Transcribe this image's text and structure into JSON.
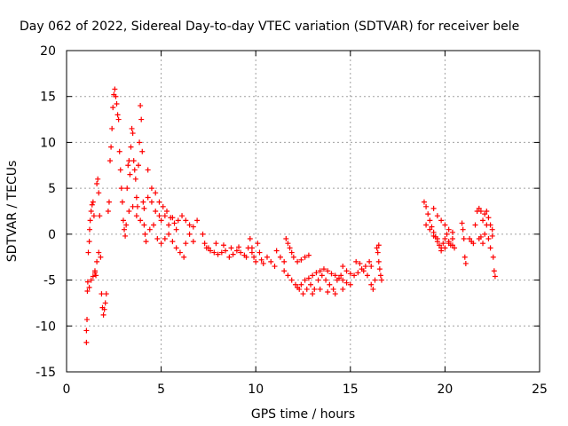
{
  "chart_data": {
    "type": "scatter",
    "title": "Day 062 of 2022, Sidereal Day-to-day VTEC variation (SDTVAR) for receiver bele",
    "xlabel": "GPS time / hours",
    "ylabel": "SDTVAR / TECUs",
    "xlim": [
      0,
      25
    ],
    "ylim": [
      -15,
      20
    ],
    "xticks": [
      0,
      5,
      10,
      15,
      20,
      25
    ],
    "yticks": [
      -15,
      -10,
      -5,
      0,
      5,
      10,
      15,
      20
    ],
    "xtick_labels": [
      "0",
      "5",
      "10",
      "15",
      "20",
      "25"
    ],
    "ytick_labels": [
      "-15",
      "-10",
      "-5",
      "0",
      "5",
      "10",
      "15",
      "20"
    ],
    "grid": true,
    "marker": "plus",
    "color": "#ff0000",
    "series": [
      {
        "name": "SDTVAR",
        "points": [
          [
            1.05,
            -11.8
          ],
          [
            1.05,
            -10.5
          ],
          [
            1.08,
            -9.3
          ],
          [
            1.1,
            -6.2
          ],
          [
            1.12,
            -5.2
          ],
          [
            1.15,
            -2.0
          ],
          [
            1.2,
            -0.8
          ],
          [
            1.22,
            0.5
          ],
          [
            1.25,
            1.5
          ],
          [
            1.3,
            2.5
          ],
          [
            1.35,
            3.2
          ],
          [
            1.4,
            3.5
          ],
          [
            1.45,
            2.0
          ],
          [
            1.5,
            -4.0
          ],
          [
            1.55,
            -4.5
          ],
          [
            1.6,
            5.5
          ],
          [
            1.65,
            6.0
          ],
          [
            1.7,
            4.5
          ],
          [
            1.75,
            2.0
          ],
          [
            1.8,
            -2.5
          ],
          [
            1.85,
            -6.5
          ],
          [
            1.9,
            -8.0
          ],
          [
            1.95,
            -8.8
          ],
          [
            2.0,
            -8.2
          ],
          [
            2.05,
            -7.5
          ],
          [
            2.1,
            -6.5
          ],
          [
            1.2,
            -5.8
          ],
          [
            1.3,
            -5.0
          ],
          [
            1.4,
            -4.6
          ],
          [
            1.5,
            -4.2
          ],
          [
            1.6,
            -3.0
          ],
          [
            1.7,
            -2.0
          ],
          [
            2.2,
            2.5
          ],
          [
            2.25,
            3.5
          ],
          [
            2.3,
            8.0
          ],
          [
            2.35,
            9.5
          ],
          [
            2.4,
            11.5
          ],
          [
            2.45,
            13.8
          ],
          [
            2.5,
            15.2
          ],
          [
            2.55,
            15.8
          ],
          [
            2.6,
            15.0
          ],
          [
            2.65,
            14.2
          ],
          [
            2.7,
            13.0
          ],
          [
            2.75,
            12.5
          ],
          [
            2.8,
            9.0
          ],
          [
            2.85,
            7.0
          ],
          [
            2.9,
            5.0
          ],
          [
            2.95,
            3.5
          ],
          [
            3.0,
            1.5
          ],
          [
            3.05,
            0.5
          ],
          [
            3.1,
            -0.2
          ],
          [
            3.15,
            1.0
          ],
          [
            3.2,
            5.0
          ],
          [
            3.25,
            7.5
          ],
          [
            3.3,
            8.0
          ],
          [
            3.35,
            6.5
          ],
          [
            3.4,
            9.5
          ],
          [
            3.45,
            11.5
          ],
          [
            3.5,
            11.0
          ],
          [
            3.55,
            8.0
          ],
          [
            3.6,
            7.0
          ],
          [
            3.65,
            6.0
          ],
          [
            3.7,
            4.0
          ],
          [
            3.75,
            3.0
          ],
          [
            3.8,
            7.5
          ],
          [
            3.85,
            10.0
          ],
          [
            3.9,
            14.0
          ],
          [
            3.95,
            12.5
          ],
          [
            4.0,
            9.0
          ],
          [
            4.05,
            3.5
          ],
          [
            4.1,
            1.0
          ],
          [
            4.15,
            0.0
          ],
          [
            4.2,
            -0.8
          ],
          [
            3.3,
            2.5
          ],
          [
            3.5,
            3.0
          ],
          [
            3.7,
            2.0
          ],
          [
            3.9,
            1.5
          ],
          [
            4.1,
            2.8
          ],
          [
            4.3,
            4.0
          ],
          [
            4.5,
            3.5
          ],
          [
            4.7,
            2.5
          ],
          [
            4.9,
            2.0
          ],
          [
            4.3,
            7.0
          ],
          [
            4.5,
            5.0
          ],
          [
            4.7,
            4.5
          ],
          [
            4.9,
            3.5
          ],
          [
            5.1,
            3.0
          ],
          [
            5.3,
            2.5
          ],
          [
            5.5,
            1.8
          ],
          [
            5.7,
            1.2
          ],
          [
            5.9,
            1.5
          ],
          [
            6.1,
            2.0
          ],
          [
            6.3,
            1.5
          ],
          [
            6.5,
            1.0
          ],
          [
            6.7,
            0.8
          ],
          [
            6.9,
            1.5
          ],
          [
            4.4,
            0.5
          ],
          [
            4.6,
            1.0
          ],
          [
            4.8,
            -0.5
          ],
          [
            5.0,
            -1.0
          ],
          [
            5.2,
            -0.5
          ],
          [
            5.4,
            0.0
          ],
          [
            5.6,
            -0.8
          ],
          [
            5.8,
            -1.5
          ],
          [
            6.0,
            -2.0
          ],
          [
            6.2,
            -2.5
          ],
          [
            6.3,
            -1.0
          ],
          [
            6.5,
            0.0
          ],
          [
            6.7,
            -0.8
          ],
          [
            5.0,
            1.5
          ],
          [
            5.2,
            2.0
          ],
          [
            5.4,
            1.0
          ],
          [
            5.6,
            1.8
          ],
          [
            5.8,
            0.5
          ],
          [
            7.2,
            0.0
          ],
          [
            7.3,
            -1.0
          ],
          [
            7.4,
            -1.5
          ],
          [
            7.6,
            -1.8
          ],
          [
            7.8,
            -2.0
          ],
          [
            8.0,
            -2.2
          ],
          [
            8.2,
            -2.0
          ],
          [
            8.4,
            -1.8
          ],
          [
            8.6,
            -2.5
          ],
          [
            8.8,
            -2.2
          ],
          [
            9.0,
            -1.8
          ],
          [
            9.2,
            -2.0
          ],
          [
            9.4,
            -2.3
          ],
          [
            9.6,
            -1.5
          ],
          [
            9.8,
            -2.0
          ],
          [
            7.5,
            -1.5
          ],
          [
            7.9,
            -1.0
          ],
          [
            8.3,
            -1.2
          ],
          [
            8.7,
            -1.5
          ],
          [
            9.1,
            -1.4
          ],
          [
            9.5,
            -2.5
          ],
          [
            9.7,
            -0.5
          ],
          [
            9.8,
            -1.5
          ],
          [
            9.9,
            -2.5
          ],
          [
            10.0,
            -3.0
          ],
          [
            10.1,
            -1.0
          ],
          [
            10.2,
            -2.0
          ],
          [
            10.3,
            -2.8
          ],
          [
            10.4,
            -3.2
          ],
          [
            10.6,
            -2.5
          ],
          [
            10.8,
            -3.0
          ],
          [
            11.0,
            -3.5
          ],
          [
            11.1,
            -1.8
          ],
          [
            11.3,
            -2.5
          ],
          [
            11.5,
            -3.0
          ],
          [
            11.6,
            -0.5
          ],
          [
            11.7,
            -1.0
          ],
          [
            11.8,
            -1.5
          ],
          [
            11.9,
            -2.0
          ],
          [
            12.0,
            -2.5
          ],
          [
            12.2,
            -3.0
          ],
          [
            12.4,
            -2.8
          ],
          [
            12.6,
            -2.5
          ],
          [
            12.8,
            -2.3
          ],
          [
            11.5,
            -4.0
          ],
          [
            11.7,
            -4.5
          ],
          [
            11.9,
            -5.0
          ],
          [
            12.1,
            -5.5
          ],
          [
            12.3,
            -6.0
          ],
          [
            12.5,
            -6.5
          ],
          [
            12.7,
            -6.0
          ],
          [
            12.9,
            -5.5
          ],
          [
            13.1,
            -6.0
          ],
          [
            13.3,
            -5.0
          ],
          [
            13.5,
            -4.5
          ],
          [
            13.7,
            -5.0
          ],
          [
            13.9,
            -5.5
          ],
          [
            14.1,
            -6.0
          ],
          [
            14.3,
            -5.0
          ],
          [
            14.5,
            -4.5
          ],
          [
            12.2,
            -5.8
          ],
          [
            12.4,
            -5.5
          ],
          [
            12.6,
            -5.0
          ],
          [
            12.8,
            -4.8
          ],
          [
            13.0,
            -4.5
          ],
          [
            13.2,
            -4.2
          ],
          [
            13.4,
            -4.0
          ],
          [
            13.6,
            -3.8
          ],
          [
            13.8,
            -4.0
          ],
          [
            14.0,
            -4.3
          ],
          [
            14.2,
            -4.5
          ],
          [
            14.4,
            -4.8
          ],
          [
            14.6,
            -5.0
          ],
          [
            14.8,
            -5.3
          ],
          [
            15.0,
            -5.5
          ],
          [
            13.0,
            -6.5
          ],
          [
            13.4,
            -6.0
          ],
          [
            13.8,
            -6.3
          ],
          [
            14.2,
            -6.5
          ],
          [
            14.6,
            -6.0
          ],
          [
            14.6,
            -3.5
          ],
          [
            14.8,
            -4.0
          ],
          [
            15.0,
            -4.3
          ],
          [
            15.2,
            -4.5
          ],
          [
            15.4,
            -4.2
          ],
          [
            15.6,
            -3.8
          ],
          [
            15.8,
            -3.5
          ],
          [
            16.0,
            -3.0
          ],
          [
            16.1,
            -5.5
          ],
          [
            16.2,
            -6.0
          ],
          [
            16.3,
            -5.0
          ],
          [
            15.3,
            -3.0
          ],
          [
            15.5,
            -3.2
          ],
          [
            15.7,
            -4.0
          ],
          [
            15.9,
            -4.5
          ],
          [
            16.1,
            -3.5
          ],
          [
            16.4,
            -1.5
          ],
          [
            16.45,
            -2.0
          ],
          [
            16.5,
            -3.0
          ],
          [
            16.55,
            -3.8
          ],
          [
            16.6,
            -4.5
          ],
          [
            16.65,
            -5.0
          ],
          [
            16.5,
            -1.2
          ],
          [
            18.9,
            3.5
          ],
          [
            19.0,
            3.0
          ],
          [
            19.1,
            2.2
          ],
          [
            19.2,
            1.5
          ],
          [
            19.3,
            0.8
          ],
          [
            19.4,
            0.2
          ],
          [
            19.5,
            -0.3
          ],
          [
            19.6,
            -0.8
          ],
          [
            19.7,
            -1.2
          ],
          [
            19.8,
            -1.5
          ],
          [
            19.9,
            -1.0
          ],
          [
            20.0,
            -0.5
          ],
          [
            20.1,
            0.0
          ],
          [
            20.2,
            -0.8
          ],
          [
            20.3,
            -1.2
          ],
          [
            20.4,
            -0.5
          ],
          [
            19.0,
            1.0
          ],
          [
            19.2,
            0.5
          ],
          [
            19.4,
            -0.2
          ],
          [
            19.6,
            -0.5
          ],
          [
            19.8,
            -1.8
          ],
          [
            20.0,
            -1.5
          ],
          [
            20.2,
            -1.0
          ],
          [
            20.4,
            -1.2
          ],
          [
            20.5,
            -1.5
          ],
          [
            19.4,
            2.8
          ],
          [
            19.6,
            2.0
          ],
          [
            19.8,
            1.5
          ],
          [
            20.0,
            1.0
          ],
          [
            20.2,
            0.5
          ],
          [
            20.4,
            0.2
          ],
          [
            20.9,
            1.2
          ],
          [
            20.95,
            0.5
          ],
          [
            21.0,
            -0.5
          ],
          [
            21.05,
            -2.5
          ],
          [
            21.1,
            -3.2
          ],
          [
            21.3,
            -0.5
          ],
          [
            21.4,
            -0.8
          ],
          [
            21.5,
            -1.0
          ],
          [
            21.6,
            1.0
          ],
          [
            21.7,
            2.5
          ],
          [
            21.8,
            2.8
          ],
          [
            21.9,
            2.5
          ],
          [
            22.0,
            1.5
          ],
          [
            22.1,
            2.2
          ],
          [
            22.2,
            2.5
          ],
          [
            22.3,
            1.8
          ],
          [
            22.4,
            1.0
          ],
          [
            22.5,
            0.5
          ],
          [
            22.55,
            -2.5
          ],
          [
            22.6,
            -4.0
          ],
          [
            22.65,
            -4.6
          ],
          [
            21.8,
            -0.5
          ],
          [
            21.9,
            -0.3
          ],
          [
            22.0,
            -1.0
          ],
          [
            22.1,
            0.0
          ],
          [
            22.2,
            1.0
          ],
          [
            22.3,
            -0.5
          ],
          [
            22.4,
            -1.5
          ],
          [
            22.5,
            -0.2
          ]
        ]
      }
    ]
  }
}
